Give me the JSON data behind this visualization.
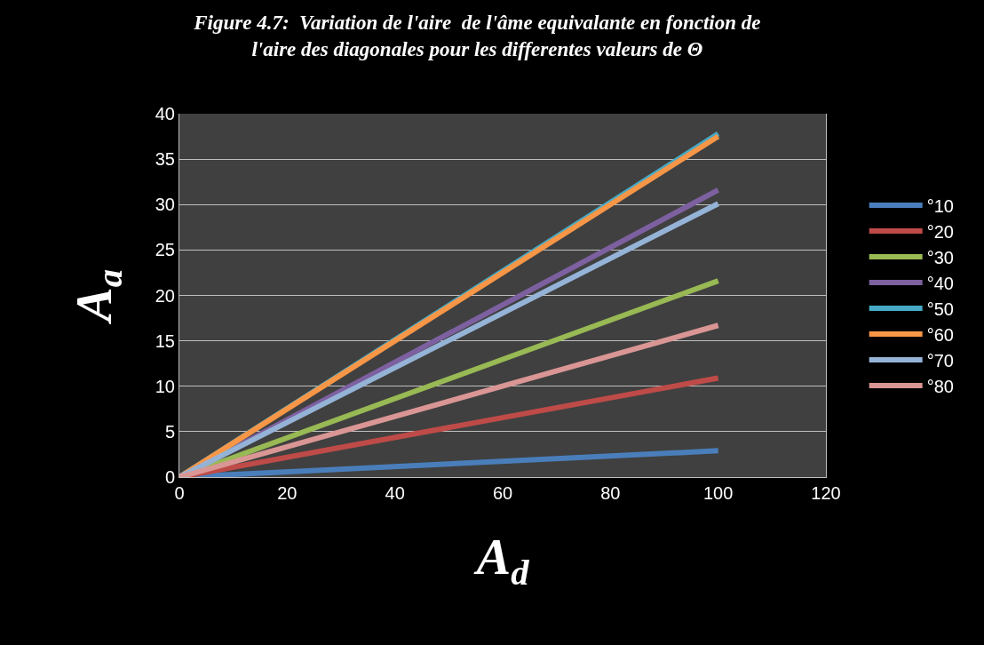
{
  "chart_data": {
    "type": "line",
    "title": "Figure 4.7:  Variation de l'aire  de l'âme equivalante en fonction de\nl'aire des diagonales pour les differentes valeurs de Θ",
    "xlabel": "A$_{d}$",
    "ylabel": "A$_{a}$",
    "x": [
      0,
      100
    ],
    "xlim": [
      0,
      120
    ],
    "xticks": [
      0,
      20,
      40,
      60,
      80,
      100,
      120
    ],
    "ylim": [
      0,
      40
    ],
    "yticks": [
      0,
      5,
      10,
      15,
      20,
      25,
      30,
      35,
      40
    ],
    "grid": "y",
    "legend": "right",
    "marker": "none",
    "line_style": "solid",
    "series": [
      {
        "name": "°10",
        "color": "#4a7ebb",
        "values": [
          0,
          2.9
        ]
      },
      {
        "name": "°20",
        "color": "#be4b48",
        "values": [
          0,
          10.9
        ]
      },
      {
        "name": "°30",
        "color": "#98b954",
        "values": [
          0,
          21.6
        ]
      },
      {
        "name": "°40",
        "color": "#7d60a0",
        "values": [
          0,
          31.6
        ]
      },
      {
        "name": "°50",
        "color": "#46aac5",
        "values": [
          0,
          37.8
        ]
      },
      {
        "name": "°60",
        "color": "#f79646",
        "values": [
          0,
          37.5
        ]
      },
      {
        "name": "°70",
        "color": "#95b3d7",
        "values": [
          0,
          30.1
        ]
      },
      {
        "name": "°80",
        "color": "#d99694",
        "values": [
          0,
          16.7
        ]
      }
    ]
  }
}
